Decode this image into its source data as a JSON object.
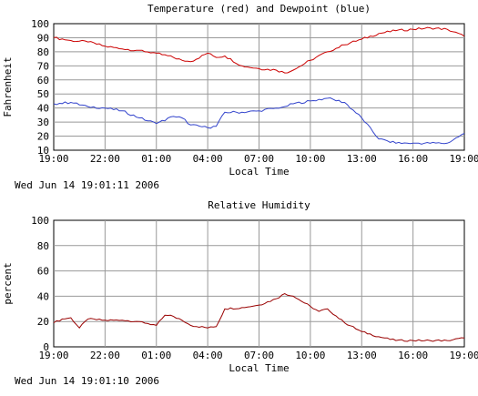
{
  "chart_data": [
    {
      "type": "line",
      "title": "Temperature (red) and Dewpoint (blue)",
      "xlabel": "Local Time",
      "ylabel": "Fahrenheit",
      "ylim": [
        10,
        100
      ],
      "grid": true,
      "x_ticks": [
        "19:00",
        "22:00",
        "01:00",
        "04:00",
        "07:00",
        "10:00",
        "13:00",
        "16:00",
        "19:00"
      ],
      "y_ticks": [
        "10",
        "20",
        "30",
        "40",
        "50",
        "60",
        "70",
        "80",
        "90",
        "100"
      ],
      "x_hours": [
        0,
        1,
        2,
        3,
        4,
        5,
        6,
        7,
        7.5,
        8,
        9,
        9.5,
        10,
        11,
        12,
        13,
        13.5,
        14,
        15,
        16,
        17,
        18,
        19,
        20,
        21,
        22,
        23,
        24
      ],
      "series": [
        {
          "color": "#cc0000",
          "values": [
            90,
            88,
            87,
            84,
            82,
            81,
            79,
            76,
            74,
            73,
            79,
            76,
            77,
            70,
            68,
            67,
            65,
            67,
            74,
            80,
            85,
            89,
            93,
            95,
            96,
            97,
            96,
            91
          ]
        },
        {
          "color": "#3344cc",
          "values": [
            43,
            44,
            41,
            40,
            38,
            33,
            29,
            34,
            33,
            28,
            26,
            27,
            37,
            37,
            38,
            40,
            41,
            43,
            45,
            47,
            44,
            33,
            18,
            15,
            15,
            15,
            15,
            22
          ]
        }
      ],
      "timestamp": "Wed Jun 14 19:01:11 2006"
    },
    {
      "type": "line",
      "title": "Relative Humidity",
      "xlabel": "Local Time",
      "ylabel": "percent",
      "ylim": [
        0,
        100
      ],
      "grid": true,
      "x_ticks": [
        "19:00",
        "22:00",
        "01:00",
        "04:00",
        "07:00",
        "10:00",
        "13:00",
        "16:00",
        "19:00"
      ],
      "y_ticks": [
        "0",
        "20",
        "40",
        "60",
        "80",
        "100"
      ],
      "x_hours": [
        0,
        0.5,
        1,
        1.5,
        2,
        3,
        4,
        5,
        6,
        6.5,
        7,
        7.5,
        8,
        9,
        9.5,
        10,
        11,
        12,
        13,
        13.5,
        14,
        15,
        15.5,
        16,
        17,
        18,
        19,
        20,
        21,
        22,
        23,
        24
      ],
      "series": [
        {
          "color": "#990000",
          "values": [
            19,
            22,
            23,
            15,
            22,
            21,
            21,
            20,
            17,
            25,
            24,
            21,
            17,
            15,
            16,
            30,
            31,
            33,
            38,
            42,
            40,
            32,
            28,
            30,
            19,
            12,
            8,
            5,
            5,
            5,
            5,
            7
          ]
        }
      ],
      "timestamp": "Wed Jun 14 19:01:10 2006"
    }
  ]
}
